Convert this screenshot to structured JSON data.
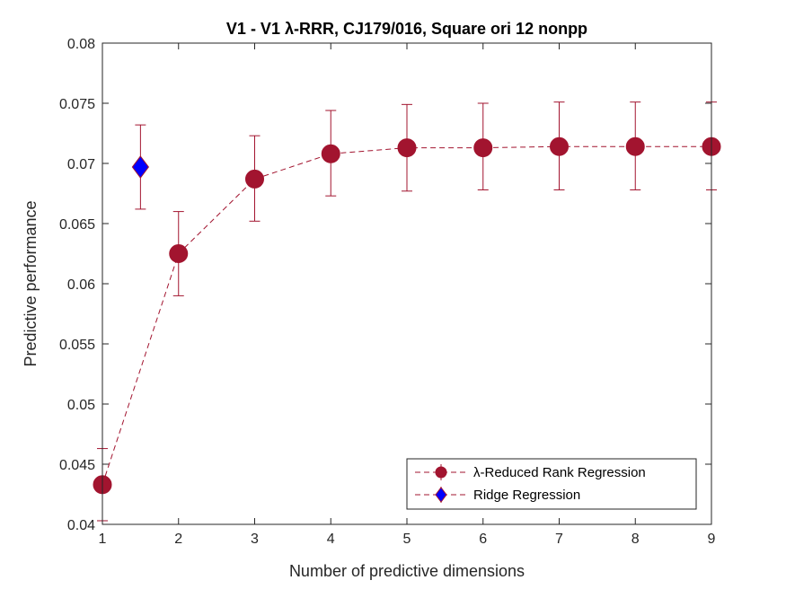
{
  "chart_data": {
    "type": "line",
    "title": "V1 - V1 λ-RRR, CJ179/016, Square ori 12 nonpp",
    "xlabel": "Number of predictive dimensions",
    "ylabel": "Predictive performance",
    "xlim": [
      1,
      9
    ],
    "ylim": [
      0.04,
      0.08
    ],
    "x_ticks": [
      1,
      2,
      3,
      4,
      5,
      6,
      7,
      8,
      9
    ],
    "x_tick_labels": [
      "1",
      "2",
      "3",
      "4",
      "5",
      "6",
      "7",
      "8",
      "9"
    ],
    "y_ticks": [
      0.04,
      0.045,
      0.05,
      0.055,
      0.06,
      0.065,
      0.07,
      0.075,
      0.08
    ],
    "y_tick_labels": [
      "0.04",
      "0.045",
      "0.05",
      "0.055",
      "0.06",
      "0.065",
      "0.07",
      "0.075",
      "0.08"
    ],
    "grid": false,
    "legend_position": "bottom-right",
    "series": [
      {
        "name": "λ-Reduced Rank Regression",
        "color": "#A2142F",
        "marker": "circle",
        "line_style": "dashed",
        "x": [
          1,
          2,
          3,
          4,
          5,
          6,
          7,
          8,
          9
        ],
        "y": [
          0.0433,
          0.0625,
          0.0687,
          0.0708,
          0.0713,
          0.0713,
          0.0714,
          0.0714,
          0.0714
        ],
        "err_low": [
          0.0403,
          0.059,
          0.0652,
          0.0673,
          0.0677,
          0.0678,
          0.0678,
          0.0678,
          0.0678
        ],
        "err_high": [
          0.0463,
          0.066,
          0.0723,
          0.0744,
          0.0749,
          0.075,
          0.0751,
          0.0751,
          0.0751
        ]
      },
      {
        "name": "Ridge Regression",
        "color": "#0000FF",
        "edge_color": "#A2142F",
        "marker": "diamond",
        "line_style": "dashed",
        "x": [
          1.5
        ],
        "y": [
          0.0697
        ],
        "err_low": [
          0.0662
        ],
        "err_high": [
          0.0732
        ]
      }
    ]
  }
}
